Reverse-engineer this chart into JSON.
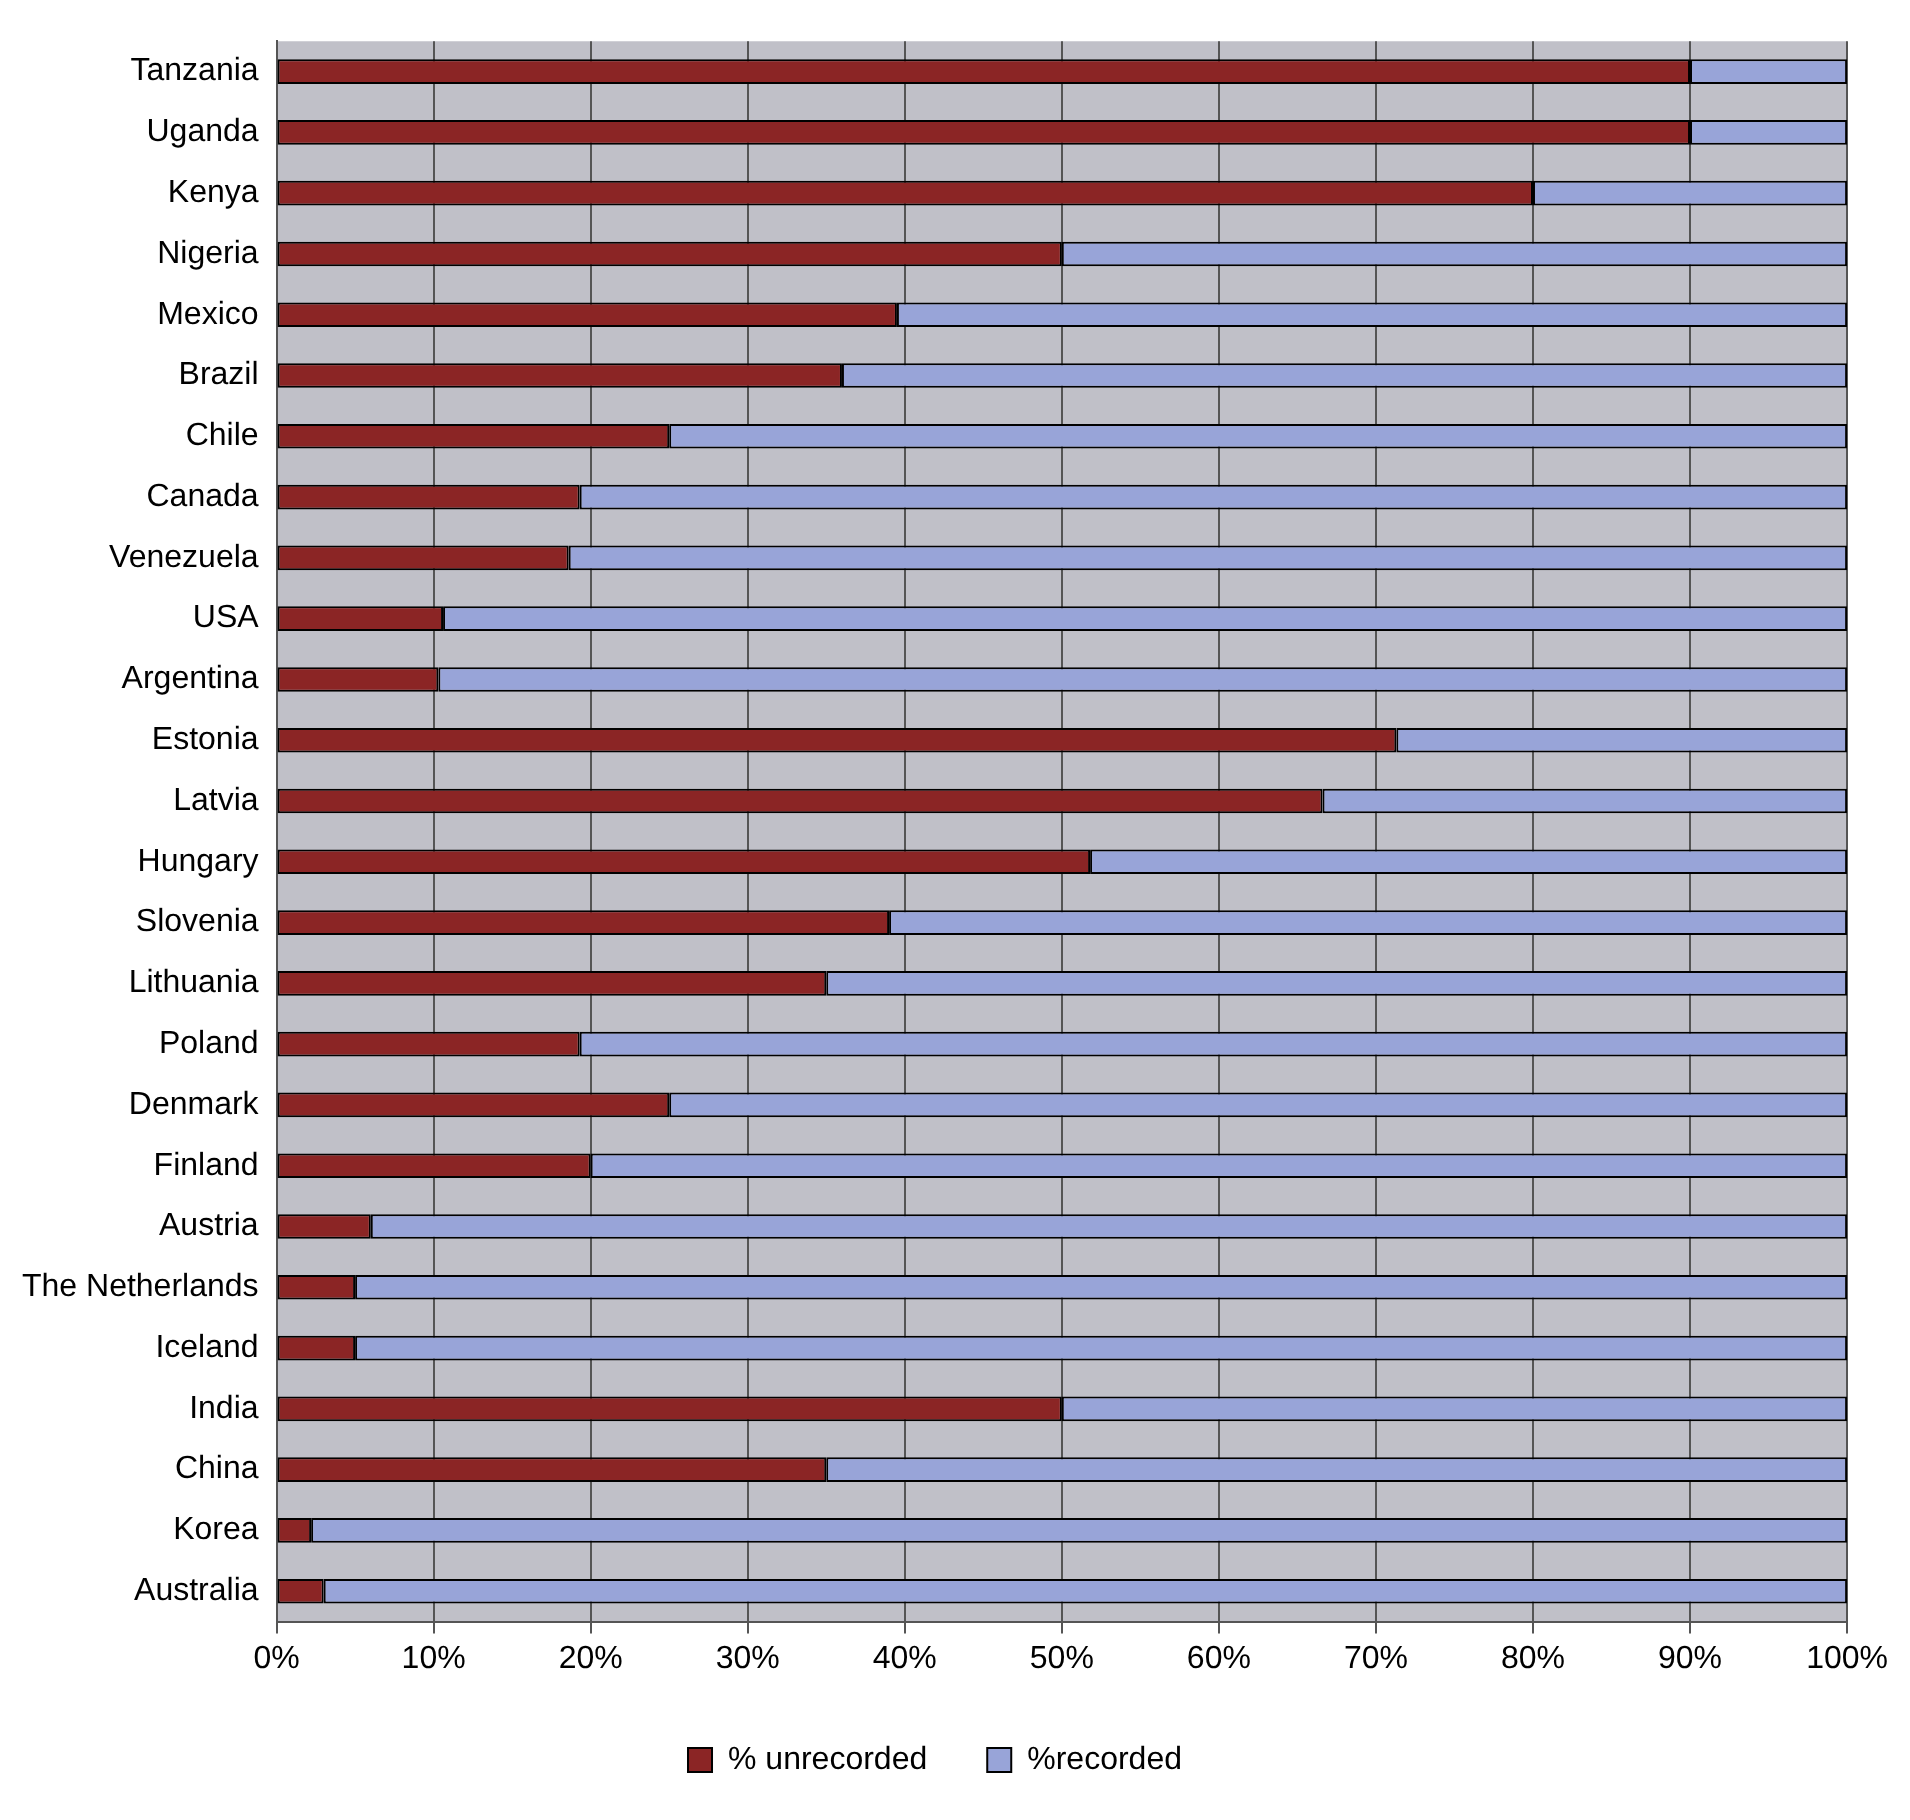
{
  "chart_data": {
    "type": "bar",
    "orientation": "horizontal",
    "stacked": true,
    "legend": "bottom",
    "grid": "x",
    "categories": [
      "Tanzania",
      "Uganda",
      "Kenya",
      "Nigeria",
      "Mexico",
      "Brazil",
      "Chile",
      "Canada",
      "Venezuela",
      "USA",
      "Argentina",
      "Estonia",
      "Latvia",
      "Hungary",
      "Slovenia",
      "Lithuania",
      "Poland",
      "Denmark",
      "Finland",
      "Austria",
      "The Netherlands",
      "Iceland",
      "India",
      "China",
      "Korea",
      "Australia"
    ],
    "series": [
      {
        "name": "% unrecorded",
        "color": "#8b2525",
        "values": [
          90,
          90,
          80,
          50,
          39.5,
          36,
          25,
          19.3,
          18.6,
          10.6,
          10.3,
          71.3,
          66.6,
          51.8,
          39,
          35,
          19.3,
          25,
          20,
          6,
          5,
          5,
          50,
          35,
          2.2,
          3
        ]
      },
      {
        "name": "%recorded",
        "color": "#98a4d8",
        "values": [
          10,
          10,
          20,
          50,
          60.5,
          64,
          75,
          80.7,
          81.4,
          89.4,
          89.7,
          28.7,
          33.4,
          48.2,
          61,
          65,
          80.7,
          75,
          80,
          94,
          95,
          95,
          50,
          65,
          97.8,
          97
        ]
      }
    ],
    "xlim": [
      0,
      100
    ],
    "xticks": [
      {
        "value": 0,
        "label": "0%"
      },
      {
        "value": 10,
        "label": "10%"
      },
      {
        "value": 20,
        "label": "20%"
      },
      {
        "value": 30,
        "label": "30%"
      },
      {
        "value": 40,
        "label": "40%"
      },
      {
        "value": 50,
        "label": "50%"
      },
      {
        "value": 60,
        "label": "60%"
      },
      {
        "value": 70,
        "label": "70%"
      },
      {
        "value": 80,
        "label": "80%"
      },
      {
        "value": 90,
        "label": "90%"
      },
      {
        "value": 100,
        "label": "100%"
      }
    ]
  }
}
